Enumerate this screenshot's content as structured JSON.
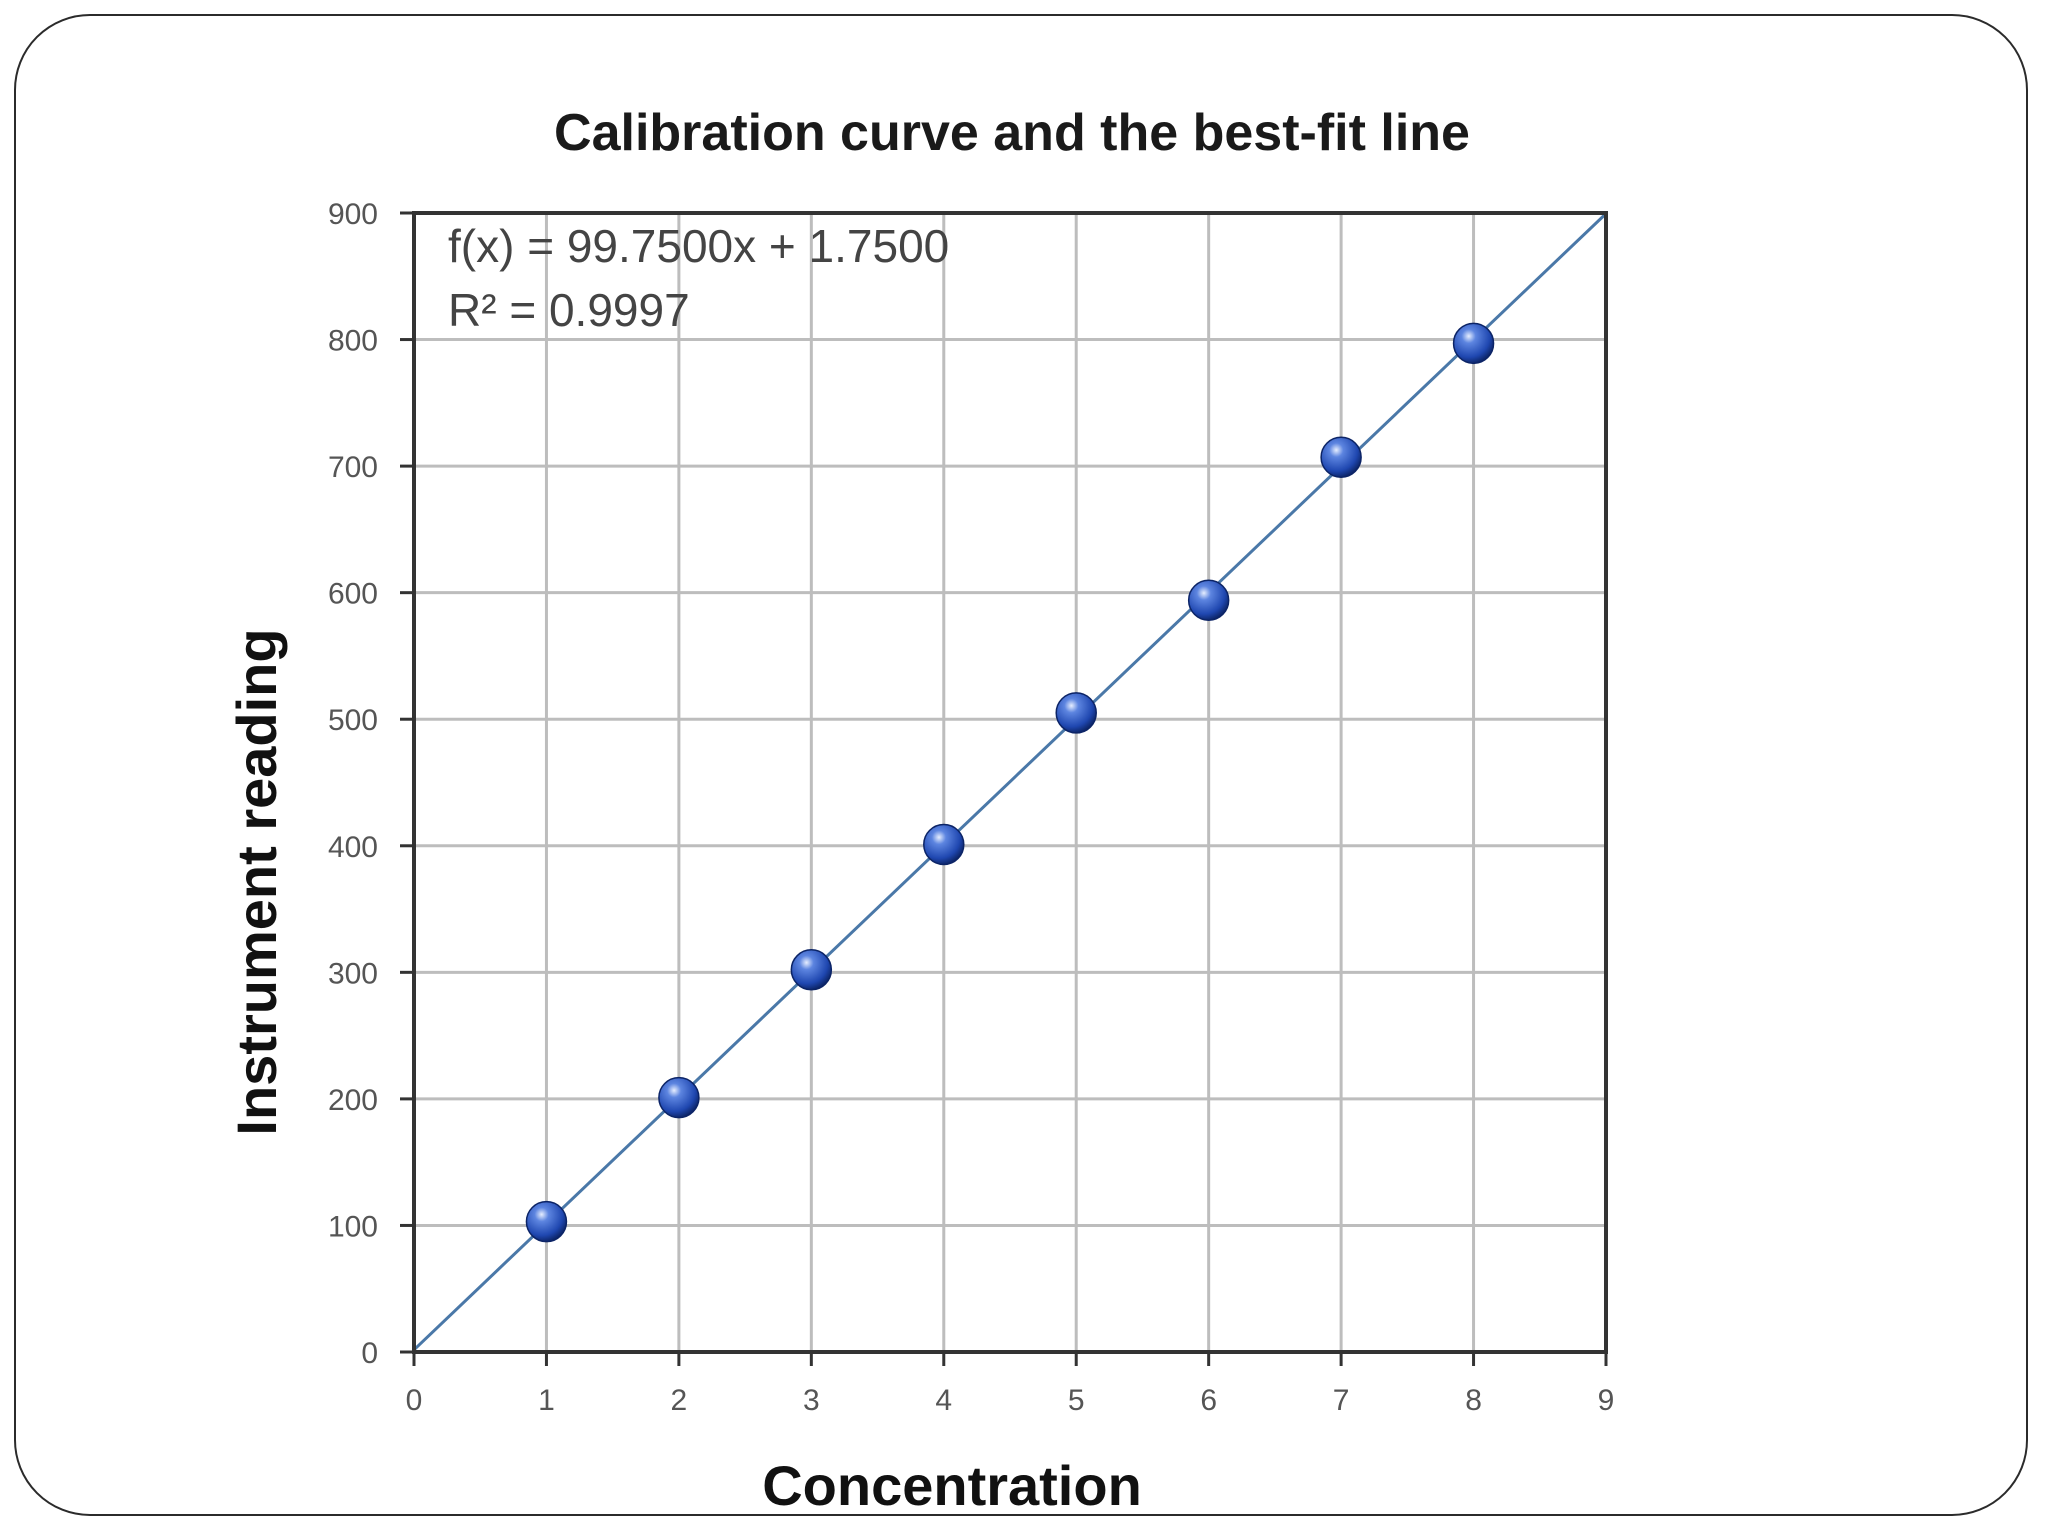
{
  "chart_data": {
    "type": "scatter",
    "title": "Calibration curve and the best-fit line",
    "xlabel": "Concentration",
    "ylabel": "Instrument reading",
    "xlim": [
      0,
      9
    ],
    "ylim": [
      0,
      900
    ],
    "xticks": [
      "0",
      "1",
      "2",
      "3",
      "4",
      "5",
      "6",
      "7",
      "8",
      "9"
    ],
    "yticks": [
      "0",
      "100",
      "200",
      "300",
      "400",
      "500",
      "600",
      "700",
      "800",
      "900"
    ],
    "grid": true,
    "annotations": {
      "equation": "f(x) = 99.7500x  + 1.7500",
      "r_squared": "R² = 0.9997"
    },
    "trendline": {
      "slope": 99.75,
      "intercept": 1.75
    },
    "series": [
      {
        "x": [
          1,
          2,
          3,
          4,
          5,
          6,
          7,
          8
        ],
        "y": [
          103,
          201,
          302,
          401,
          505,
          594,
          707,
          797
        ],
        "color": "#1f47b0"
      }
    ],
    "colors": {
      "grid": "#bdbdbd",
      "frame": "#333333",
      "trendline": "#4a78a8",
      "marker": "#1f47b0"
    }
  }
}
